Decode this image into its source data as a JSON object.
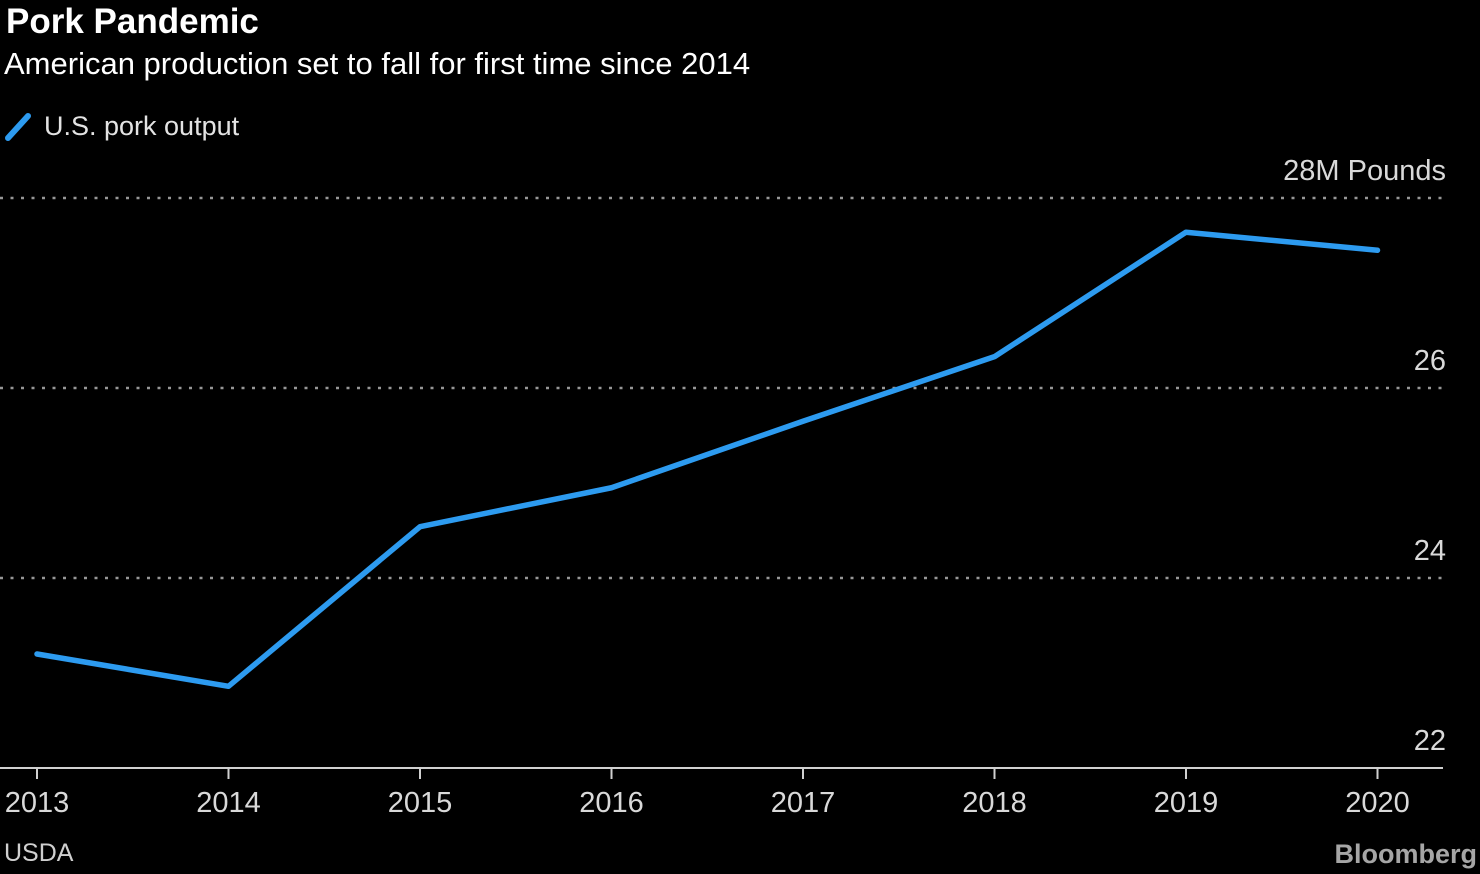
{
  "header": {
    "title": "Pork Pandemic",
    "subtitle": "American production set to fall for first time since 2014"
  },
  "legend": {
    "series_label": "U.S. pork output"
  },
  "footer": {
    "source": "USDA",
    "brand": "Bloomberg"
  },
  "colors": {
    "background": "#000000",
    "line": "#2d9bf0",
    "gridline": "#979797",
    "axis": "#d0d0d0",
    "tick_label": "#d9d9d9",
    "title_text": "#ffffff"
  },
  "chart_data": {
    "type": "line",
    "title": "Pork Pandemic",
    "subtitle": "American production set to fall for first time since 2014",
    "categories": [
      "2013",
      "2014",
      "2015",
      "2016",
      "2017",
      "2018",
      "2019",
      "2020"
    ],
    "series": [
      {
        "name": "U.S. pork output",
        "values": [
          23.2,
          22.86,
          24.54,
          24.95,
          25.65,
          26.33,
          27.64,
          27.45
        ]
      }
    ],
    "xlabel": "",
    "ylabel": "M Pounds",
    "ylim": [
      22,
      28
    ],
    "yticks": [
      {
        "value": 28,
        "label": "28M Pounds"
      },
      {
        "value": 26,
        "label": "26"
      },
      {
        "value": 24,
        "label": "24"
      },
      {
        "value": 22,
        "label": "22"
      }
    ],
    "grid": "horizontal-dotted",
    "legend_position": "top-left",
    "source": "USDA"
  }
}
